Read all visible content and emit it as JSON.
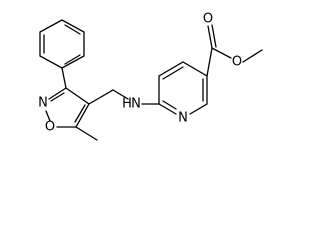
{
  "atoms": [
    "N",
    "O",
    "H",
    "N",
    "N",
    "O",
    "O"
  ]
}
